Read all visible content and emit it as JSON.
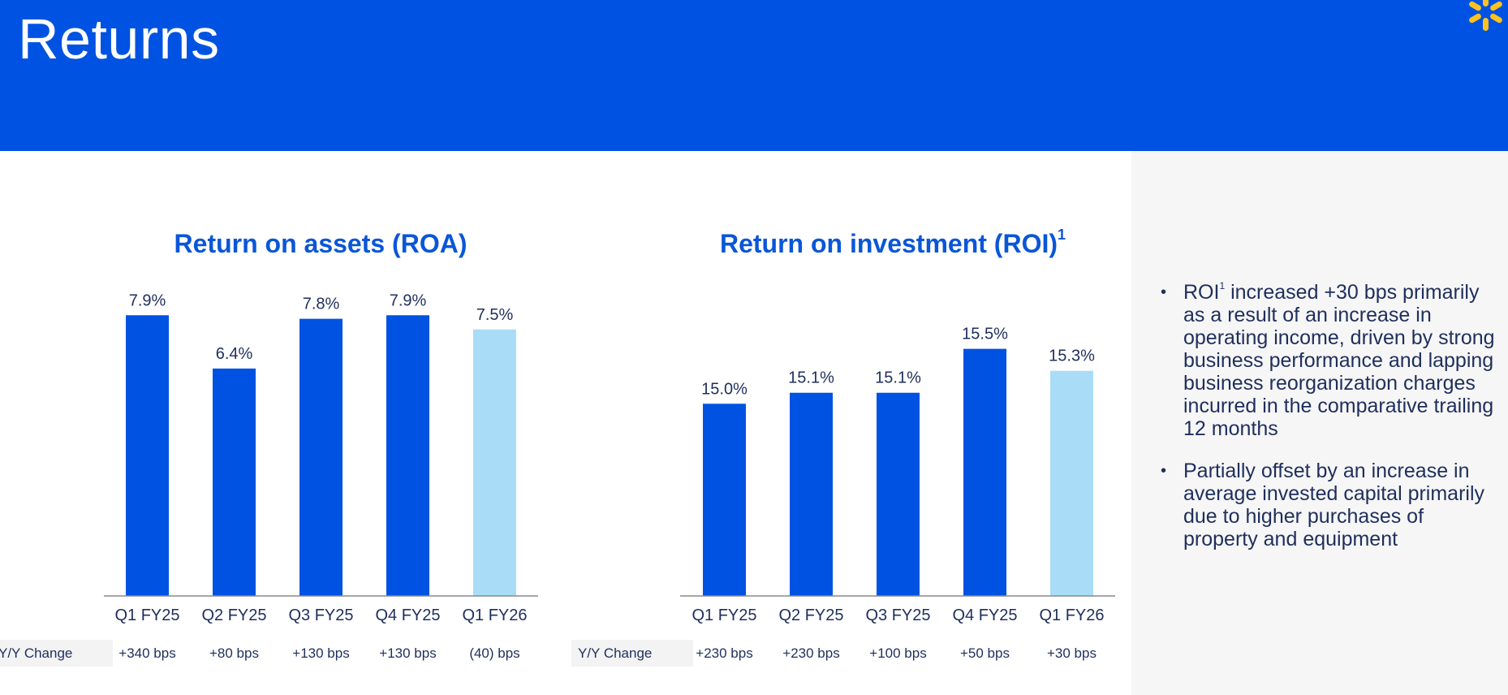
{
  "header": {
    "title": "Returns",
    "brand_color": "#0053e2",
    "spark_color": "#ffc220",
    "logo_icon": "walmart-spark-icon"
  },
  "colors": {
    "bar": "#0053e2",
    "bar_highlight": "#a9ddf7",
    "axis": "#8a8a8a",
    "text": "#1f2f5c",
    "side_panel": "#f6f6f6"
  },
  "chart_data": [
    {
      "type": "bar",
      "title": "Return on assets (ROA)",
      "title_superscript": "",
      "categories": [
        "Q1 FY25",
        "Q2 FY25",
        "Q3 FY25",
        "Q4 FY25",
        "Q1 FY26"
      ],
      "values": [
        7.9,
        6.4,
        7.8,
        7.9,
        7.5
      ],
      "value_labels": [
        "7.9%",
        "6.4%",
        "7.8%",
        "7.9%",
        "7.5%"
      ],
      "highlight_index": 4,
      "ylim": [
        0,
        8.5
      ],
      "yoy_label": "Y/Y Change",
      "yoy_changes": [
        "+340 bps",
        "+80 bps",
        "+130 bps",
        "+130 bps",
        "(40) bps"
      ]
    },
    {
      "type": "bar",
      "title": "Return on investment (ROI)",
      "title_superscript": "1",
      "categories": [
        "Q1 FY25",
        "Q2 FY25",
        "Q3 FY25",
        "Q4 FY25",
        "Q1 FY26"
      ],
      "values": [
        15.0,
        15.1,
        15.1,
        15.5,
        15.3
      ],
      "value_labels": [
        "15.0%",
        "15.1%",
        "15.1%",
        "15.5%",
        "15.3%"
      ],
      "highlight_index": 4,
      "ylim": [
        13.25,
        16.0
      ],
      "yoy_label": "Y/Y Change",
      "yoy_changes": [
        "+230 bps",
        "+230 bps",
        "+100 bps",
        "+50 bps",
        "+30 bps"
      ]
    }
  ],
  "sidebar": {
    "bullet_char": "•",
    "bullets": [
      {
        "prefix": "ROI",
        "superscript": "1",
        "text": " increased +30 bps primarily as a result of an increase in operating income, driven by strong business performance and lapping business reorganization charges incurred in the comparative trailing 12 months"
      },
      {
        "prefix": "",
        "superscript": "",
        "text": "Partially offset by an increase in average invested capital primarily due to higher purchases of property and equipment"
      }
    ]
  }
}
